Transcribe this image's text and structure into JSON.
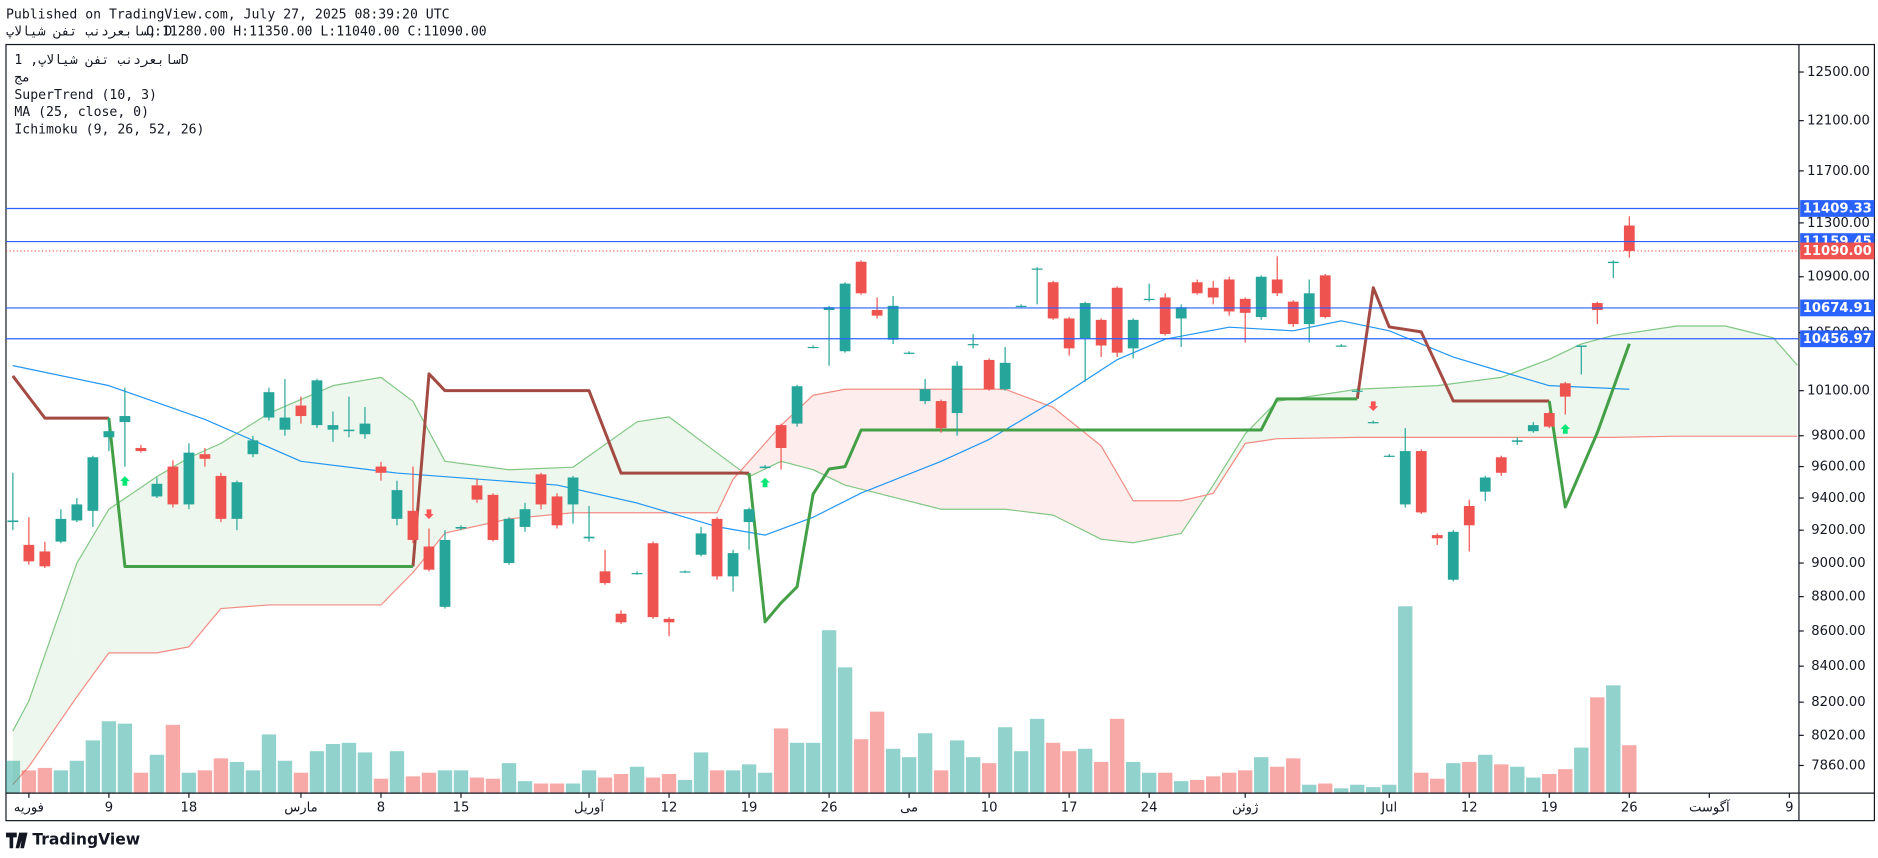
{
  "chart_data": {
    "type": "candlestick",
    "header": {
      "published": "Published on TradingView.com, July 27, 2025 08:39:20 UTC",
      "symbol": "سابعردنب تفن شیالاپ, D",
      "ohlc": "O:11280.00 H:11350.00 L:11040.00 C:11090.00"
    },
    "legend": [
      "سابعردنب تفن شیالاپ, 1D",
      "مج",
      "SuperTrend (10, 3)",
      "MA (25, close, 0)",
      "Ichimoku (9, 26, 52, 26)"
    ],
    "footer": "TradingView",
    "log_scale": true,
    "up_color": "#26a69a",
    "down_color": "#ef5350",
    "xlim": [
      -0.43,
      111.6
    ],
    "ylim": [
      7716,
      12732
    ],
    "yticks": [
      {
        "value": 12500,
        "label": "12500.00"
      },
      {
        "value": 12100,
        "label": "12100.00"
      },
      {
        "value": 11700,
        "label": "11700.00"
      },
      {
        "value": 11300,
        "label": "11300.00"
      },
      {
        "value": 10900,
        "label": "10900.00"
      },
      {
        "value": 10500,
        "label": "10500.00"
      },
      {
        "value": 10100,
        "label": "10100.00"
      },
      {
        "value": 9800,
        "label": "9800.00"
      },
      {
        "value": 9600,
        "label": "9600.00"
      },
      {
        "value": 9400,
        "label": "9400.00"
      },
      {
        "value": 9200,
        "label": "9200.00"
      },
      {
        "value": 9000,
        "label": "9000.00"
      },
      {
        "value": 8800,
        "label": "8800.00"
      },
      {
        "value": 8600,
        "label": "8600.00"
      },
      {
        "value": 8400,
        "label": "8400.00"
      },
      {
        "value": 8200,
        "label": "8200.00"
      },
      {
        "value": 8020,
        "label": "8020.00"
      },
      {
        "value": 7860,
        "label": "7860.00"
      }
    ],
    "xticks": [
      {
        "value": 1,
        "label": "فوریه"
      },
      {
        "value": 6,
        "label": "9"
      },
      {
        "value": 11,
        "label": "18"
      },
      {
        "value": 18,
        "label": "مارس"
      },
      {
        "value": 23,
        "label": "8"
      },
      {
        "value": 28,
        "label": "15"
      },
      {
        "value": 36,
        "label": "آوریل"
      },
      {
        "value": 41,
        "label": "12"
      },
      {
        "value": 46,
        "label": "19"
      },
      {
        "value": 51,
        "label": "26"
      },
      {
        "value": 56,
        "label": "می"
      },
      {
        "value": 61,
        "label": "10"
      },
      {
        "value": 66,
        "label": "17"
      },
      {
        "value": 71,
        "label": "24"
      },
      {
        "value": 77,
        "label": "ژوئن"
      },
      {
        "value": 86,
        "label": "Jul"
      },
      {
        "value": 91,
        "label": "12"
      },
      {
        "value": 96,
        "label": "19"
      },
      {
        "value": 101,
        "label": "26"
      },
      {
        "value": 106,
        "label": "آگوست"
      },
      {
        "value": 111,
        "label": "9"
      }
    ],
    "open": [
      9250,
      9110,
      9070,
      9130,
      9260,
      9320,
      9790,
      9890,
      9720,
      9410,
      9600,
      9360,
      9680,
      9540,
      9270,
      9680,
      9920,
      9840,
      10000,
      9870,
      9840,
      9830,
      9810,
      9600,
      9270,
      9320,
      9100,
      8740,
      9210,
      9480,
      9420,
      9000,
      9220,
      9550,
      9410,
      9360,
      9150,
      8950,
      8700,
      8940,
      9120,
      8670,
      8945,
      9050,
      9270,
      8920,
      9250,
      9590,
      9870,
      9880,
      10400,
      10660,
      10370,
      11010,
      10660,
      10450,
      10360,
      10030,
      10030,
      9950,
      10420,
      10310,
      10110,
      10690,
      10960,
      10860,
      10600,
      10460,
      10590,
      10820,
      10390,
      10740,
      10750,
      10600,
      10860,
      10820,
      10880,
      10740,
      10610,
      10880,
      10720,
      10560,
      10910,
      10410,
      10100,
      9890,
      9670,
      9360,
      9700,
      9170,
      8900,
      9350,
      9440,
      9660,
      9760,
      9830,
      9950,
      10150,
      10400,
      10710,
      11000,
      11280
    ],
    "high": [
      9560,
      9280,
      9130,
      9330,
      9400,
      9670,
      9920,
      10120,
      9740,
      9530,
      9640,
      9750,
      9720,
      9560,
      9510,
      9800,
      10120,
      10180,
      10060,
      10180,
      9960,
      10060,
      9990,
      9630,
      9510,
      9600,
      9210,
      9200,
      9230,
      9520,
      9430,
      9280,
      9370,
      9560,
      9430,
      9540,
      9350,
      9080,
      8720,
      8950,
      9130,
      8680,
      8955,
      9220,
      9280,
      9080,
      9340,
      9610,
      9880,
      10140,
      10410,
      10690,
      10860,
      11020,
      10750,
      10760,
      10370,
      10180,
      10040,
      10300,
      10490,
      10320,
      10400,
      10700,
      10970,
      10870,
      10610,
      10720,
      10600,
      10830,
      10600,
      10850,
      10780,
      10700,
      10880,
      10870,
      10900,
      10750,
      10910,
      11050,
      10730,
      10880,
      10920,
      10420,
      10110,
      9900,
      9680,
      9850,
      9710,
      9180,
      9200,
      9390,
      9540,
      9670,
      9790,
      9890,
      9960,
      10160,
      10410,
      10720,
      11020,
      11350
    ],
    "low": [
      9200,
      8990,
      8970,
      9120,
      9250,
      9220,
      9700,
      9600,
      9690,
      9400,
      9340,
      9330,
      9600,
      9250,
      9200,
      9660,
      9900,
      9800,
      9880,
      9850,
      9760,
      9790,
      9780,
      9510,
      9230,
      9120,
      8950,
      8730,
      9200,
      9370,
      9130,
      8990,
      9190,
      9330,
      9210,
      9240,
      9130,
      8870,
      8640,
      8930,
      8670,
      8570,
      8940,
      9040,
      8900,
      8830,
      9080,
      9590,
      9580,
      9860,
      10390,
      10270,
      10360,
      10770,
      10600,
      10420,
      10350,
      10010,
      9820,
      9800,
      10390,
      10100,
      10100,
      10680,
      10700,
      10590,
      10340,
      10160,
      10330,
      10330,
      10320,
      10720,
      10480,
      10400,
      10770,
      10700,
      10620,
      10430,
      10590,
      10760,
      10540,
      10430,
      10600,
      10400,
      10090,
      9880,
      9660,
      9340,
      9300,
      9110,
      8890,
      9070,
      9380,
      9540,
      9740,
      9820,
      9850,
      9940,
      10210,
      10560,
      10890,
      11040
    ],
    "close": [
      9260,
      9010,
      8980,
      9270,
      9360,
      9660,
      9830,
      9930,
      9700,
      9490,
      9360,
      9690,
      9650,
      9270,
      9500,
      9770,
      10090,
      9920,
      9930,
      10170,
      9870,
      9840,
      9880,
      9560,
      9450,
      9140,
      8960,
      9140,
      9220,
      9390,
      9140,
      9270,
      9330,
      9360,
      9230,
      9530,
      9160,
      8880,
      8650,
      8940,
      8680,
      8650,
      8950,
      9180,
      8920,
      9060,
      9330,
      9600,
      9720,
      10130,
      10400,
      10680,
      10850,
      10780,
      10620,
      10690,
      10360,
      10110,
      9850,
      10270,
      10420,
      10110,
      10290,
      10690,
      10960,
      10600,
      10390,
      10710,
      10410,
      10360,
      10590,
      10740,
      10490,
      10680,
      10780,
      10750,
      10650,
      10640,
      10900,
      10780,
      10560,
      10780,
      10610,
      10410,
      10100,
      9890,
      9670,
      9700,
      9310,
      9150,
      9190,
      9230,
      9530,
      9560,
      9770,
      9870,
      9860,
      10060,
      10410,
      10660,
      11010,
      11090
    ],
    "volume": {
      "vlim": [
        0,
        625
      ],
      "opacity": 0.5,
      "values": [
        27,
        19,
        21,
        19,
        27,
        44,
        60,
        58,
        17,
        32,
        57,
        17,
        19,
        29,
        26,
        19,
        49,
        27,
        17,
        35,
        41,
        42,
        34,
        12,
        35,
        14,
        17,
        19,
        19,
        13,
        12,
        25,
        10,
        8,
        8,
        8,
        19,
        13,
        16,
        22,
        13,
        16,
        11,
        34,
        19,
        19,
        24,
        17,
        54,
        42,
        42,
        136,
        105,
        45,
        68,
        37,
        30,
        50,
        19,
        44,
        30,
        25,
        55,
        35,
        62,
        42,
        35,
        37,
        26,
        62,
        26,
        17,
        17,
        10,
        11,
        14,
        17,
        19,
        30,
        22,
        29,
        7,
        8,
        4,
        7,
        5,
        7,
        156,
        17,
        12,
        25,
        26,
        32,
        24,
        22,
        13,
        16,
        20,
        38,
        80,
        90,
        40
      ]
    },
    "ma": {
      "color": "#2196f3",
      "x": [
        0,
        6,
        12,
        18,
        24,
        29,
        34,
        39,
        44,
        47,
        50,
        53,
        58,
        61,
        65,
        69,
        72,
        76,
        80,
        83,
        86,
        90,
        93,
        96,
        101
      ],
      "values": [
        10271,
        10134,
        9908,
        9634,
        9558,
        9520,
        9482,
        9369,
        9221,
        9170,
        9280,
        9431,
        9634,
        9776,
        10029,
        10312,
        10454,
        10538,
        10513,
        10583,
        10513,
        10330,
        10230,
        10134,
        10110
      ]
    },
    "supertrend": {
      "down": {
        "color": "#a34a43",
        "x": [
          0,
          2,
          6,
          null,
          25,
          26,
          27,
          36,
          38,
          46,
          null,
          84,
          85,
          86,
          88,
          90,
          96
        ],
        "values": [
          10200,
          9916,
          9916,
          null,
          8979,
          10214,
          10100,
          10100,
          9558,
          9558,
          null,
          10045,
          10821,
          10540,
          10505,
          10031,
          10031
        ]
      },
      "up": {
        "color": "#43a047",
        "x": [
          6,
          7,
          25,
          null,
          46,
          47,
          48,
          49,
          50,
          51,
          52,
          53,
          78,
          79,
          84,
          null,
          96,
          97,
          99,
          101
        ],
        "values": [
          9916,
          8979,
          8979,
          null,
          9558,
          8653,
          8763,
          8858,
          9425,
          9584,
          9600,
          9838,
          9838,
          10045,
          10045,
          null,
          10031,
          9344,
          9819,
          10422
        ]
      }
    },
    "ichimoku": {
      "span_a_color": "#81c784",
      "span_b_color": "#f28b82",
      "bull_fill": "rgba(76,175,80,0.1)",
      "bear_fill": "rgba(239,83,80,0.1)",
      "x": [
        0,
        1,
        4,
        6,
        9,
        11,
        13,
        16,
        20,
        23,
        25,
        27,
        31,
        35,
        39,
        41,
        44,
        45,
        46,
        48,
        50,
        52,
        54,
        58,
        62,
        65,
        68,
        70,
        73,
        75,
        77,
        79,
        84,
        89,
        93,
        96,
        98,
        100,
        104,
        107,
        110,
        111.5
      ],
      "span_a": [
        8043,
        8207,
        9000,
        9330,
        9535,
        9657,
        9750,
        9948,
        10134,
        10190,
        10028,
        9634,
        9580,
        9596,
        9892,
        9924,
        9688,
        9611,
        9535,
        9634,
        9580,
        9481,
        9431,
        9330,
        9330,
        9293,
        9145,
        9123,
        9180,
        9481,
        9813,
        10028,
        10110,
        10134,
        10190,
        10314,
        10421,
        10480,
        10547,
        10547,
        10463,
        10273
      ],
      "span_b": [
        7760,
        7854,
        8230,
        8475,
        8475,
        8509,
        8730,
        8751,
        8751,
        8751,
        8943,
        9182,
        9270,
        9308,
        9308,
        9308,
        9308,
        9519,
        9634,
        9868,
        10069,
        10110,
        10110,
        10110,
        10110,
        9988,
        9734,
        9383,
        9383,
        9429,
        9750,
        9781,
        9789,
        9789,
        9789,
        9789,
        9789,
        9789,
        9797,
        9797,
        9797,
        9797
      ]
    },
    "hlines": {
      "color": "#2962ff",
      "values": [
        11409.33,
        11159.45,
        10674.91,
        10456.97
      ]
    },
    "last_price": {
      "value": 11090,
      "label": "11090.00",
      "color": "#ef5350"
    },
    "signals": {
      "buy_color": "#00e676",
      "sell_color": "#ff5252",
      "buy": [
        7,
        47,
        97
      ],
      "sell": [
        26,
        85
      ]
    }
  }
}
